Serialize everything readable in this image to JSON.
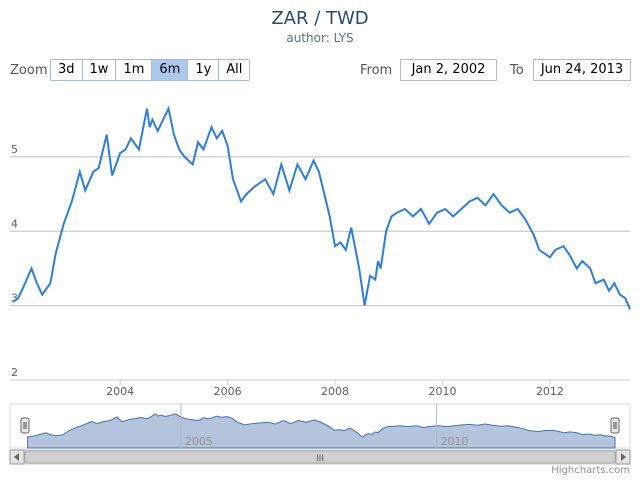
{
  "header": {
    "title": "ZAR / TWD",
    "subtitle": "author: LYS"
  },
  "range_selector": {
    "zoom_label": "Zoom",
    "buttons": [
      "3d",
      "1w",
      "1m",
      "6m",
      "1y",
      "All"
    ],
    "selected": "6m",
    "from_label": "From",
    "from_value": "Jan 2, 2002",
    "to_label": "To",
    "to_value": "Jun 24, 2013"
  },
  "navigator": {
    "labels": [
      "2005",
      "2010"
    ],
    "scrollbar_grip": "III"
  },
  "credits": "Highcharts.com",
  "colors": {
    "line": "#2f7ed8",
    "navigator_fill": "#b3c4dc",
    "navigator_line": "#4572a7",
    "grid": "#c0c0c0"
  },
  "chart_data": {
    "type": "line",
    "title": "ZAR / TWD",
    "subtitle": "author: LYS",
    "xlim": [
      2001.95,
      2013.49
    ],
    "ylim": [
      2,
      5.9
    ],
    "x_ticks": [
      2004,
      2006,
      2008,
      2010,
      2012
    ],
    "y_ticks": [
      2,
      3,
      4,
      5
    ],
    "grid": true,
    "series": [
      {
        "x": [
          2002.0,
          2002.1,
          2002.2,
          2002.35,
          2002.45,
          2002.55,
          2002.7,
          2002.8,
          2002.95,
          2003.1,
          2003.25,
          2003.35,
          2003.5,
          2003.6,
          2003.75,
          2003.85,
          2004.0,
          2004.1,
          2004.2,
          2004.35,
          2004.5,
          2004.55,
          2004.6,
          2004.7,
          2004.8,
          2004.9,
          2005.0,
          2005.1,
          2005.2,
          2005.35,
          2005.45,
          2005.55,
          2005.7,
          2005.8,
          2005.9,
          2006.0,
          2006.1,
          2006.25,
          2006.35,
          2006.5,
          2006.7,
          2006.85,
          2007.0,
          2007.15,
          2007.3,
          2007.45,
          2007.6,
          2007.7,
          2007.8,
          2007.9,
          2008.0,
          2008.1,
          2008.2,
          2008.3,
          2008.45,
          2008.55,
          2008.65,
          2008.75,
          2008.8,
          2008.85,
          2008.95,
          2009.05,
          2009.15,
          2009.3,
          2009.45,
          2009.6,
          2009.75,
          2009.9,
          2010.05,
          2010.2,
          2010.35,
          2010.5,
          2010.65,
          2010.8,
          2010.95,
          2011.1,
          2011.25,
          2011.4,
          2011.55,
          2011.7,
          2011.8,
          2011.9,
          2012.0,
          2012.1,
          2012.25,
          2012.35,
          2012.5,
          2012.6,
          2012.75,
          2012.85,
          2013.0,
          2013.1,
          2013.2,
          2013.3,
          2013.4,
          2013.49
        ],
        "y": [
          3.05,
          3.1,
          3.25,
          3.5,
          3.3,
          3.15,
          3.3,
          3.7,
          4.1,
          4.4,
          4.8,
          4.55,
          4.8,
          4.85,
          5.3,
          4.75,
          5.05,
          5.1,
          5.25,
          5.1,
          5.65,
          5.4,
          5.5,
          5.35,
          5.5,
          5.65,
          5.3,
          5.1,
          5.0,
          4.9,
          5.2,
          5.1,
          5.4,
          5.25,
          5.35,
          5.15,
          4.7,
          4.4,
          4.5,
          4.6,
          4.7,
          4.5,
          4.9,
          4.55,
          4.9,
          4.7,
          4.95,
          4.8,
          4.5,
          4.2,
          3.8,
          3.85,
          3.75,
          4.05,
          3.5,
          3.0,
          3.4,
          3.35,
          3.6,
          3.5,
          4.0,
          4.2,
          4.25,
          4.3,
          4.2,
          4.3,
          4.1,
          4.25,
          4.3,
          4.2,
          4.3,
          4.4,
          4.45,
          4.35,
          4.5,
          4.35,
          4.25,
          4.3,
          4.15,
          3.95,
          3.75,
          3.7,
          3.65,
          3.75,
          3.8,
          3.7,
          3.5,
          3.6,
          3.5,
          3.3,
          3.35,
          3.2,
          3.3,
          3.15,
          3.1,
          2.95
        ]
      }
    ]
  }
}
